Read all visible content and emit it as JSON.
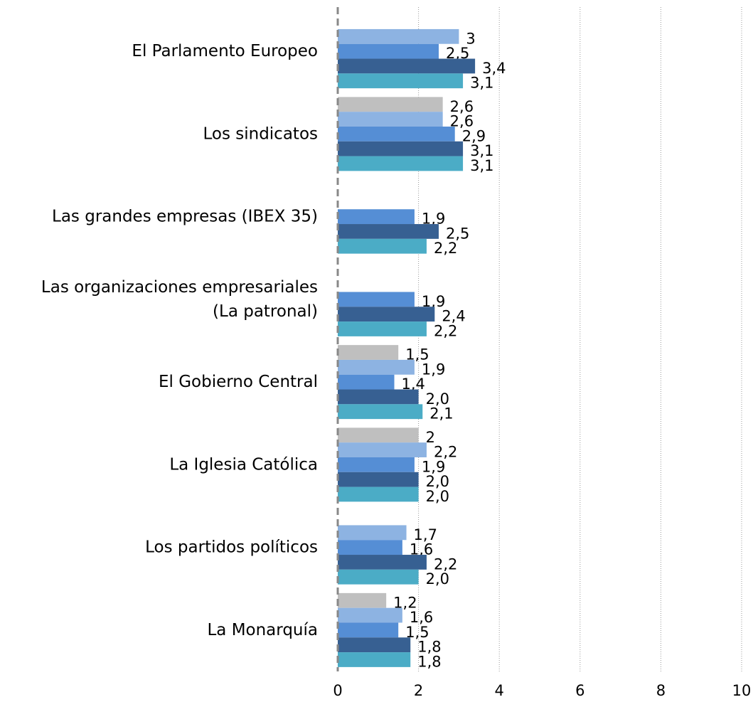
{
  "chart_data": {
    "type": "bar",
    "orientation": "horizontal",
    "categories": [
      "El Parlamento Europeo",
      "Los sindicatos",
      "Las grandes empresas (IBEX 35)",
      "Las organizaciones empresariales\n(La patronal)",
      "El Gobierno Central",
      "La Iglesia Católica",
      "Los partidos políticos",
      "La Monarquía"
    ],
    "series": [
      {
        "color": "#bfbfbf",
        "values": [
          null,
          2.6,
          null,
          null,
          1.5,
          2,
          null,
          1.2
        ],
        "value_labels": [
          null,
          "2,6",
          null,
          null,
          "1,5",
          "2",
          null,
          "1,2"
        ]
      },
      {
        "color": "#8db3e2",
        "values": [
          3,
          2.6,
          null,
          null,
          1.9,
          2.2,
          1.7,
          1.6
        ],
        "value_labels": [
          "3",
          "2,6",
          null,
          null,
          "1,9",
          "2,2",
          "1,7",
          "1,6"
        ]
      },
      {
        "color": "#558ed5",
        "values": [
          2.5,
          2.9,
          1.9,
          1.9,
          1.4,
          1.9,
          1.6,
          1.5
        ],
        "value_labels": [
          "2,5",
          "2,9",
          "1,9",
          "1,9",
          "1,4",
          "1,9",
          "1,6",
          "1,5"
        ]
      },
      {
        "color": "#376092",
        "values": [
          3.4,
          3.1,
          2.5,
          2.4,
          2.0,
          2.0,
          2.2,
          1.8
        ],
        "value_labels": [
          "3,4",
          "3,1",
          "2,5",
          "2,4",
          "2,0",
          "2,0",
          "2,2",
          "1,8"
        ]
      },
      {
        "color": "#4bacc6",
        "values": [
          3.1,
          3.1,
          2.2,
          2.2,
          2.1,
          2.0,
          2.0,
          1.8
        ],
        "value_labels": [
          "3,1",
          "3,1",
          "2,2",
          "2,2",
          "2,1",
          "2,0",
          "2,0",
          "1,8"
        ]
      }
    ],
    "xlim": [
      0,
      10
    ],
    "xticks": [
      0,
      2,
      4,
      6,
      8,
      10
    ],
    "grid": true
  }
}
